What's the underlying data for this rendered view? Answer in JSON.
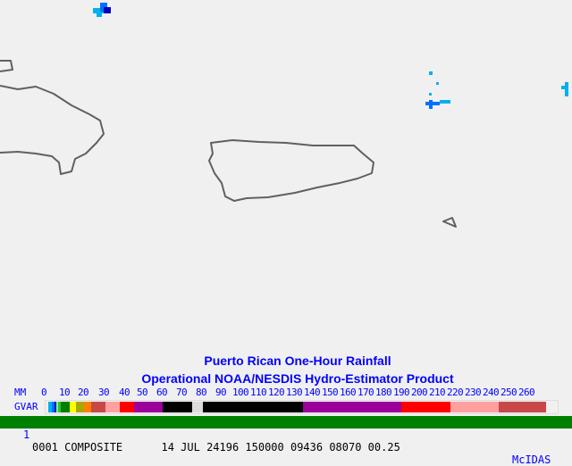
{
  "title_line1": "Puerto Rican One-Hour Rainfall",
  "title_line2": "Operational NOAA/NESDIS  Hydro-Estimator Product",
  "legend": {
    "units_label": "MM",
    "source_label": "GVAR",
    "ticks": [
      "0",
      "10",
      "20",
      "30",
      "40",
      "50",
      "60",
      "70",
      "80",
      "90",
      "100",
      "110",
      "120",
      "130",
      "140",
      "150",
      "160",
      "170",
      "180",
      "190",
      "200",
      "210",
      "220",
      "230",
      "240",
      "250",
      "260"
    ],
    "colors": [
      "#00b0f0",
      "#0070ff",
      "#0000c0",
      "#80ff80",
      "#30c030",
      "#008000",
      "#ffff00",
      "#a8a800",
      "#ff8000",
      "#c84848",
      "#ffa0a0",
      "#ff0000",
      "#9b009b",
      "#000000",
      "#dcdcdc",
      "#000000",
      "#9b009b",
      "#ff0000",
      "#ffa0a0",
      "#c84848"
    ]
  },
  "status_bar": {
    "frame": "1",
    "text": "0001 COMPOSITE      14 JUL 24196 150000 09436 08070 00.25",
    "brand": "McIDAS",
    "background": "#008000"
  },
  "colors": {
    "coastline": "#606060",
    "text": "#0000ff",
    "background": "#f0f0f0"
  }
}
